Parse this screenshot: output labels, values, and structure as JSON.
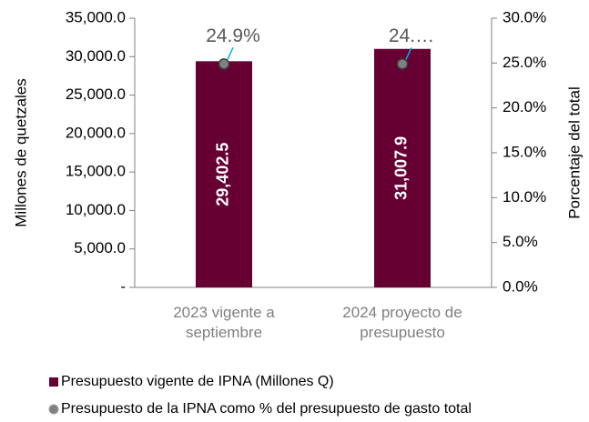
{
  "chart_data": {
    "type": "bar",
    "categories": [
      "2023 vigente a septiembre",
      "2024 proyecto de presupuesto"
    ],
    "series": [
      {
        "name": "Presupuesto vigente de IPNA (Millones Q)",
        "type": "bar",
        "color": "#660033",
        "values": [
          29402.5,
          31007.9
        ],
        "value_labels": [
          "29,402.5",
          "31,007.9"
        ]
      },
      {
        "name": "Presupuesto de la IPNA como % del presupuesto de gasto total",
        "type": "scatter",
        "axis": "y2",
        "color": "#808080",
        "values": [
          24.9,
          24.9
        ],
        "value_labels": [
          "24.9%",
          "24.…"
        ]
      }
    ],
    "ylabel": "Millones de quetzales",
    "y2label": "Porcentaje del total",
    "ylim": [
      0,
      35000
    ],
    "yticks": [
      {
        "value": 0,
        "label": "-"
      },
      {
        "value": 5000,
        "label": "5,000.0"
      },
      {
        "value": 10000,
        "label": "10,000.0"
      },
      {
        "value": 15000,
        "label": "15,000.0"
      },
      {
        "value": 20000,
        "label": "20,000.0"
      },
      {
        "value": 25000,
        "label": "25,000.0"
      },
      {
        "value": 30000,
        "label": "30,000.0"
      },
      {
        "value": 35000,
        "label": "35,000.0"
      }
    ],
    "y2lim": [
      0,
      30
    ],
    "y2ticks": [
      {
        "value": 0,
        "label": "0.0%"
      },
      {
        "value": 5,
        "label": "5.0%"
      },
      {
        "value": 10,
        "label": "10.0%"
      },
      {
        "value": 15,
        "label": "15.0%"
      },
      {
        "value": 20,
        "label": "20.0%"
      },
      {
        "value": 25,
        "label": "25.0%"
      },
      {
        "value": 30,
        "label": "30.0%"
      }
    ],
    "grid": false,
    "legend": "bottom"
  }
}
